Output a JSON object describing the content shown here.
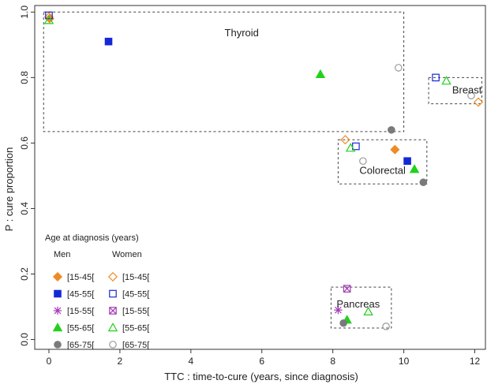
{
  "chart_data": {
    "type": "scatter",
    "xlabel": "TTC : time-to-cure (years, since diagnosis)",
    "ylabel": "P : cure proportion",
    "xlim": [
      -0.4,
      12.3
    ],
    "ylim": [
      -0.03,
      1.02
    ],
    "x_ticks": [
      0,
      2,
      4,
      6,
      8,
      10,
      12
    ],
    "y_ticks": [
      0.0,
      0.2,
      0.4,
      0.6,
      0.8,
      1.0
    ],
    "x_tick_labels": [
      "0",
      "2",
      "4",
      "6",
      "8",
      "10",
      "12"
    ],
    "y_tick_labels": [
      "0.0",
      "0.2",
      "0.4",
      "0.6",
      "0.8",
      "1.0"
    ],
    "grid": false,
    "legend": {
      "title": "Age at diagnosis (years)",
      "headers": [
        "Men",
        "Women"
      ],
      "placement": "bottom-left",
      "rows": [
        {
          "men_label": "[15-45[",
          "women_label": "[15-45["
        },
        {
          "men_label": "[45-55[",
          "women_label": "[45-55["
        },
        {
          "men_label": "[15-55[",
          "women_label": "[15-55["
        },
        {
          "men_label": "[55-65[",
          "women_label": "[55-65["
        },
        {
          "men_label": "[65-75[",
          "women_label": "[65-75["
        }
      ]
    },
    "groups": [
      {
        "label": "Thyroid",
        "box": {
          "x": [
            -0.15,
            10.0
          ],
          "y": [
            0.635,
            1.0
          ]
        }
      },
      {
        "label": "Colorectal",
        "box": {
          "x": [
            8.15,
            10.65
          ],
          "y": [
            0.475,
            0.61
          ]
        }
      },
      {
        "label": "Breast",
        "box": {
          "x": [
            10.7,
            12.2
          ],
          "y": [
            0.72,
            0.8
          ]
        }
      },
      {
        "label": "Pancreas",
        "box": {
          "x": [
            7.95,
            9.65
          ],
          "y": [
            0.035,
            0.16
          ]
        }
      }
    ],
    "series": [
      {
        "sex": "Men",
        "age": "[15-45[",
        "marker": "diamond-filled",
        "color": "#f08a24",
        "points": [
          {
            "x": 0.02,
            "y": 0.98
          },
          {
            "x": 9.75,
            "y": 0.58
          }
        ]
      },
      {
        "sex": "Men",
        "age": "[45-55[",
        "marker": "square-filled",
        "color": "#1428d8",
        "points": [
          {
            "x": 1.68,
            "y": 0.91
          },
          {
            "x": 10.1,
            "y": 0.545
          }
        ]
      },
      {
        "sex": "Men",
        "age": "[15-55[",
        "marker": "star",
        "color": "#a43ab6",
        "points": [
          {
            "x": 8.15,
            "y": 0.09
          }
        ]
      },
      {
        "sex": "Men",
        "age": "[55-65[",
        "marker": "triangle-filled",
        "color": "#22d11c",
        "points": [
          {
            "x": 7.65,
            "y": 0.81
          },
          {
            "x": 10.3,
            "y": 0.52
          },
          {
            "x": 8.4,
            "y": 0.06
          }
        ]
      },
      {
        "sex": "Men",
        "age": "[65-75[",
        "marker": "circle-filled",
        "color": "#7a7a7a",
        "points": [
          {
            "x": 9.65,
            "y": 0.64
          },
          {
            "x": 10.55,
            "y": 0.48
          },
          {
            "x": 8.3,
            "y": 0.05
          }
        ]
      },
      {
        "sex": "Women",
        "age": "[15-45[",
        "marker": "diamond-open",
        "color": "#f08a24",
        "points": [
          {
            "x": 0.0,
            "y": 0.985
          },
          {
            "x": 8.35,
            "y": 0.61
          },
          {
            "x": 12.1,
            "y": 0.725
          }
        ]
      },
      {
        "sex": "Women",
        "age": "[45-55[",
        "marker": "square-open",
        "color": "#1428d8",
        "points": [
          {
            "x": 0.0,
            "y": 0.99
          },
          {
            "x": 8.65,
            "y": 0.59
          },
          {
            "x": 10.9,
            "y": 0.8
          }
        ]
      },
      {
        "sex": "Women",
        "age": "[15-55[",
        "marker": "square-cross",
        "color": "#a43ab6",
        "points": [
          {
            "x": 8.4,
            "y": 0.155
          }
        ]
      },
      {
        "sex": "Women",
        "age": "[55-65[",
        "marker": "triangle-open",
        "color": "#22d11c",
        "points": [
          {
            "x": 0.0,
            "y": 0.975
          },
          {
            "x": 8.5,
            "y": 0.585
          },
          {
            "x": 11.2,
            "y": 0.79
          },
          {
            "x": 9.0,
            "y": 0.085
          }
        ]
      },
      {
        "sex": "Women",
        "age": "[65-75[",
        "marker": "circle-open",
        "color": "#9a9a9a",
        "points": [
          {
            "x": 9.85,
            "y": 0.83
          },
          {
            "x": 8.85,
            "y": 0.545
          },
          {
            "x": 11.9,
            "y": 0.745
          },
          {
            "x": 9.5,
            "y": 0.04
          }
        ]
      }
    ]
  }
}
